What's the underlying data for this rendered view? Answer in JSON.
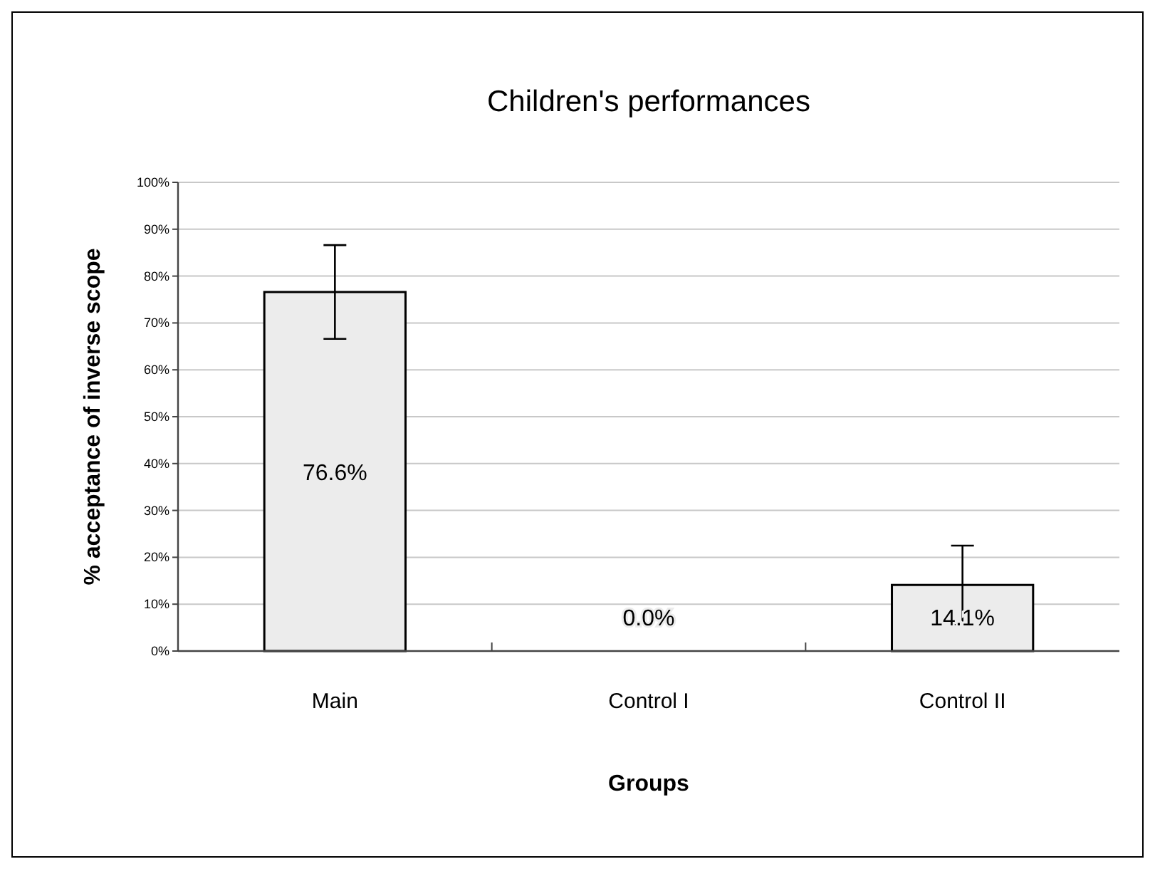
{
  "chart_data": {
    "type": "bar",
    "title": "Children's performances",
    "xlabel": "Groups",
    "ylabel": "% acceptance of inverse scope",
    "categories": [
      "Main",
      "Control I",
      "Control II"
    ],
    "values": [
      76.6,
      0,
      14.1
    ],
    "errors": [
      10,
      0,
      8.4
    ],
    "value_labels": [
      "76.6%",
      "0.0%",
      "14.1%"
    ],
    "color": "#ececec",
    "ylim": [
      0,
      100
    ],
    "yticks": [
      {
        "value": 0,
        "label": "0%"
      },
      {
        "value": 10,
        "label": "10%"
      },
      {
        "value": 20,
        "label": "20%"
      },
      {
        "value": 30,
        "label": "30%"
      },
      {
        "value": 40,
        "label": "40%"
      },
      {
        "value": 50,
        "label": "50%"
      },
      {
        "value": 60,
        "label": "60%"
      },
      {
        "value": 70,
        "label": "70%"
      },
      {
        "value": 80,
        "label": "80%"
      },
      {
        "value": 90,
        "label": "90%"
      },
      {
        "value": 100,
        "label": "100%"
      }
    ],
    "grid": "y"
  }
}
